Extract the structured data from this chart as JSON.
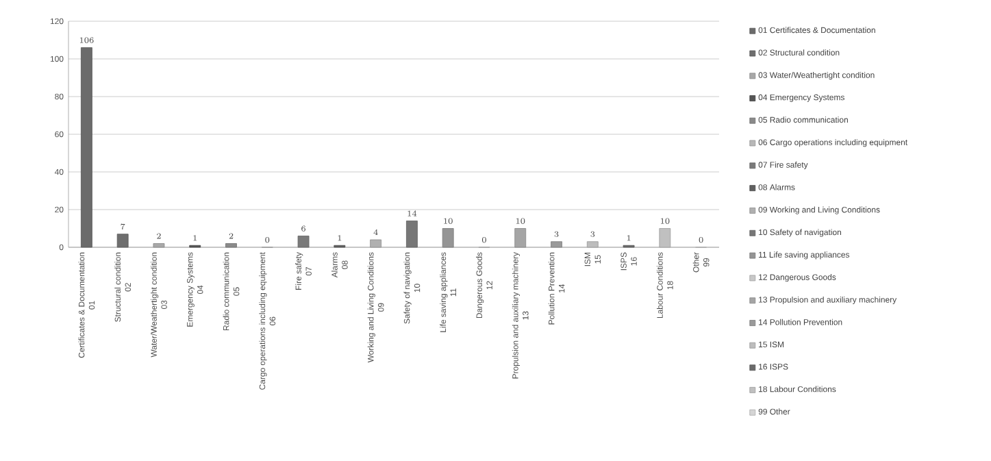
{
  "chart_data": {
    "type": "bar",
    "categories": [
      "Certificates & Documentation\n01",
      "Structural condition\n02",
      "Water/Weathertight condition\n03",
      "Emergency Systems\n04",
      "Radio communication\n05",
      "Cargo operations including equipment\n06",
      "Fire safety\n07",
      "Alarms\n08",
      "Working and Living Conditions\n09",
      "Safety of navigation\n10",
      "Life saving appliances\n11",
      "Dangerous Goods\n12",
      "Propulsion and auxiliary machinery\n13",
      "Pollution Prevention\n14",
      "ISM\n15",
      "ISPS\n16",
      "Labour Conditions\n18",
      "Other\n99"
    ],
    "series": [
      {
        "name": "01 Certificates & Documentation",
        "color": "#6b6b6b",
        "values": [
          106,
          null,
          null,
          null,
          null,
          null,
          null,
          null,
          null,
          null,
          null,
          null,
          null,
          null,
          null,
          null,
          null,
          null
        ]
      },
      {
        "name": "02 Structural condition",
        "color": "#6e6e6e",
        "values": [
          null,
          7,
          null,
          null,
          null,
          null,
          null,
          null,
          null,
          null,
          null,
          null,
          null,
          null,
          null,
          null,
          null,
          null
        ]
      },
      {
        "name": "03 Water/Weathertight condition",
        "color": "#a8a8a8",
        "values": [
          null,
          null,
          2,
          null,
          null,
          null,
          null,
          null,
          null,
          null,
          null,
          null,
          null,
          null,
          null,
          null,
          null,
          null
        ]
      },
      {
        "name": "04 Emergency Systems",
        "color": "#555555",
        "values": [
          null,
          null,
          null,
          1,
          null,
          null,
          null,
          null,
          null,
          null,
          null,
          null,
          null,
          null,
          null,
          null,
          null,
          null
        ]
      },
      {
        "name": "05 Radio communication",
        "color": "#8a8a8a",
        "values": [
          null,
          null,
          null,
          null,
          2,
          null,
          null,
          null,
          null,
          null,
          null,
          null,
          null,
          null,
          null,
          null,
          null,
          null
        ]
      },
      {
        "name": "06 Cargo operations including equipment",
        "color": "#b8b8b8",
        "values": [
          null,
          null,
          null,
          null,
          null,
          0,
          null,
          null,
          null,
          null,
          null,
          null,
          null,
          null,
          null,
          null,
          null,
          null
        ]
      },
      {
        "name": "07 Fire safety",
        "color": "#7a7a7a",
        "values": [
          null,
          null,
          null,
          null,
          null,
          null,
          6,
          null,
          null,
          null,
          null,
          null,
          null,
          null,
          null,
          null,
          null,
          null
        ]
      },
      {
        "name": "08 Alarms",
        "color": "#606060",
        "values": [
          null,
          null,
          null,
          null,
          null,
          null,
          null,
          1,
          null,
          null,
          null,
          null,
          null,
          null,
          null,
          null,
          null,
          null
        ]
      },
      {
        "name": "09 Working and Living Conditions",
        "color": "#b0b0b0",
        "values": [
          null,
          null,
          null,
          null,
          null,
          null,
          null,
          null,
          4,
          null,
          null,
          null,
          null,
          null,
          null,
          null,
          null,
          null
        ]
      },
      {
        "name": "10 Safety of navigation",
        "color": "#777777",
        "values": [
          null,
          null,
          null,
          null,
          null,
          null,
          null,
          null,
          null,
          14,
          null,
          null,
          null,
          null,
          null,
          null,
          null,
          null
        ]
      },
      {
        "name": "11 Life saving appliances",
        "color": "#959595",
        "values": [
          null,
          null,
          null,
          null,
          null,
          null,
          null,
          null,
          null,
          null,
          10,
          null,
          null,
          null,
          null,
          null,
          null,
          null
        ]
      },
      {
        "name": "12 Dangerous Goods",
        "color": "#c8c8c8",
        "values": [
          null,
          null,
          null,
          null,
          null,
          null,
          null,
          null,
          null,
          null,
          null,
          0,
          null,
          null,
          null,
          null,
          null,
          null
        ]
      },
      {
        "name": "13 Propulsion and auxiliary machinery",
        "color": "#a5a5a5",
        "values": [
          null,
          null,
          null,
          null,
          null,
          null,
          null,
          null,
          null,
          null,
          null,
          null,
          10,
          null,
          null,
          null,
          null,
          null
        ]
      },
      {
        "name": "14 Pollution Prevention",
        "color": "#9a9a9a",
        "values": [
          null,
          null,
          null,
          null,
          null,
          null,
          null,
          null,
          null,
          null,
          null,
          null,
          null,
          3,
          null,
          null,
          null,
          null
        ]
      },
      {
        "name": "15 ISM",
        "color": "#bdbdbd",
        "values": [
          null,
          null,
          null,
          null,
          null,
          null,
          null,
          null,
          null,
          null,
          null,
          null,
          null,
          null,
          3,
          null,
          null,
          null
        ]
      },
      {
        "name": "16 ISPS",
        "color": "#6a6a6a",
        "values": [
          null,
          null,
          null,
          null,
          null,
          null,
          null,
          null,
          null,
          null,
          null,
          null,
          null,
          null,
          null,
          1,
          null,
          null
        ]
      },
      {
        "name": "18 Labour Conditions",
        "color": "#c0c0c0",
        "values": [
          null,
          null,
          null,
          null,
          null,
          null,
          null,
          null,
          null,
          null,
          null,
          null,
          null,
          null,
          null,
          null,
          10,
          null
        ]
      },
      {
        "name": "99 Other",
        "color": "#d5d5d5",
        "values": [
          null,
          null,
          null,
          null,
          null,
          null,
          null,
          null,
          null,
          null,
          null,
          null,
          null,
          null,
          null,
          null,
          null,
          0
        ]
      }
    ],
    "ylim": [
      0,
      120
    ],
    "yticks": [
      0,
      20,
      40,
      60,
      80,
      100,
      120
    ],
    "grid": "y",
    "legend": "right",
    "data_labels": true
  }
}
